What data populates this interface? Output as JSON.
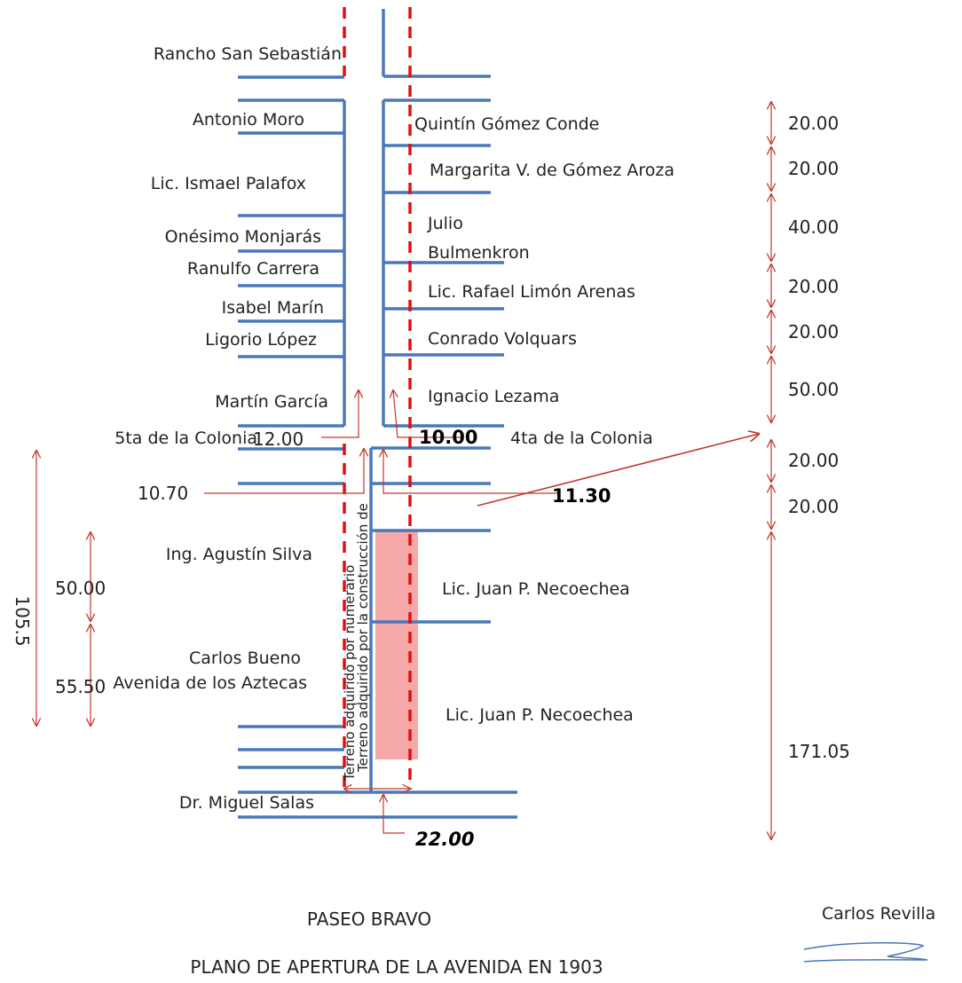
{
  "properties_left": {
    "rancho": "Rancho San Sebastián",
    "moro": "Antonio Moro",
    "palafox": "Lic. Ismael Palafox",
    "monjaras": "Onésimo Monjarás",
    "carrera": "Ranulfo Carrera",
    "marin": "Isabel Marín",
    "lopez": "Ligorio López",
    "garcia": "Martín García",
    "colonia5": "5ta de la Colonia",
    "silva": "Ing. Agustín Silva",
    "bueno": "Carlos Bueno",
    "salas": "Dr. Miguel Salas",
    "aztecas": "Avenida de los Aztecas"
  },
  "properties_right": {
    "gomez_conde": "Quintín Gómez Conde",
    "gomez_aroza": "Margarita V. de Gómez Aroza",
    "julio": "Julio",
    "bulmenkron": "Bulmenkron",
    "limon": "Lic. Rafael Limón Arenas",
    "volquars": "Conrado Volquars",
    "lezama": "Ignacio Lezama",
    "colonia4": "4ta de la Colonia",
    "necoechea1": "Lic. Juan P. Necoechea",
    "necoechea2": "Lic. Juan P. Necoechea"
  },
  "dimensions_right": [
    "20.00",
    "20.00",
    "40.00",
    "20.00",
    "20.00",
    "50.00",
    "20.00",
    "20.00",
    "171.05"
  ],
  "dimensions_left": {
    "total": "105.5",
    "upper": "50.00",
    "lower": "55.50"
  },
  "street_widths": {
    "w1200": "12.00",
    "w1000": "10.00",
    "w1070": "10.70",
    "w1130": "11.30",
    "w2200": "22.00"
  },
  "vertical_notes": {
    "note1": "Terreno adquirido por numerario",
    "note2": "Terreno adquirido por la construcción de"
  },
  "bottom": {
    "paseo": "PASEO BRAVO",
    "title": "PLANO DE APERTURA DE LA AVENIDA EN 1903",
    "author": "Carlos Revilla"
  },
  "colors": {
    "lot_lines": "#4a78b8",
    "dimensions": "#c0392b",
    "dashed_edge": "#e01010",
    "acquired_land": "#f5a3a3"
  }
}
